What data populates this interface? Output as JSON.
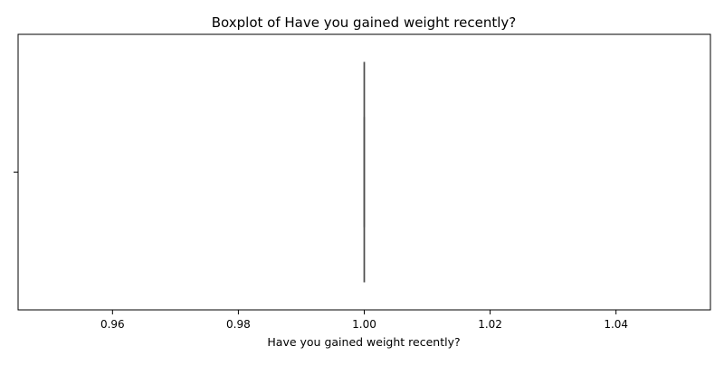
{
  "chart_data": {
    "type": "boxplot",
    "title": "Boxplot of Have you gained weight recently?",
    "xlabel": "Have you gained weight recently?",
    "ylabel": "",
    "orientation": "horizontal",
    "xlim": [
      0.945,
      1.055
    ],
    "x_ticks": [
      0.96,
      0.98,
      1.0,
      1.02,
      1.04
    ],
    "x_tick_labels": [
      "0.96",
      "0.98",
      "1.00",
      "1.02",
      "1.04"
    ],
    "y_tick_labels": [
      ""
    ],
    "grid": false,
    "boxes": [
      {
        "min": 1.0,
        "q1": 1.0,
        "median": 1.0,
        "q3": 1.0,
        "max": 1.0
      }
    ],
    "colors": {
      "box": "#4d4d4d",
      "axes": "#000000",
      "background": "#ffffff"
    }
  }
}
